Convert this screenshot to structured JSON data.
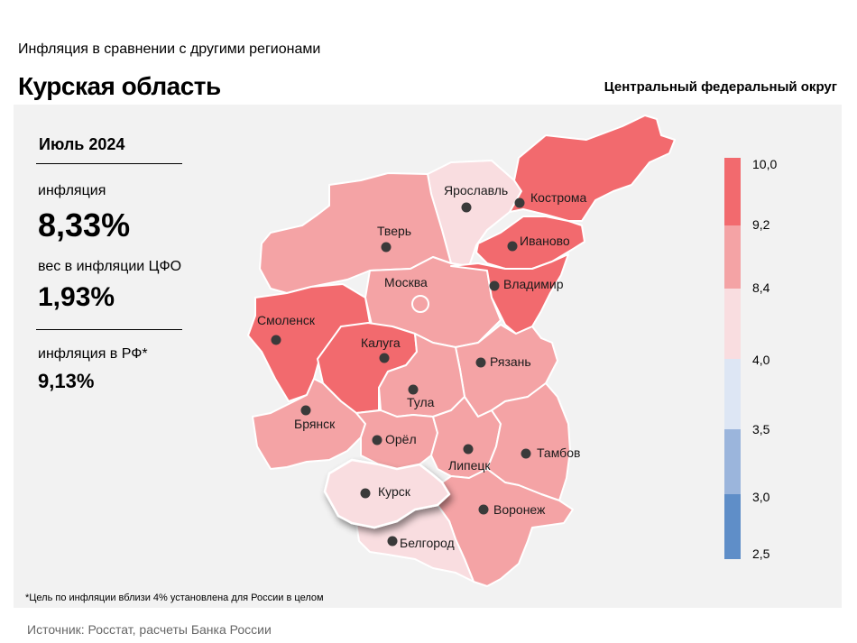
{
  "header": {
    "subtitle": "Инфляция  в сравнении  с другими  регионами",
    "title": "Курская область",
    "district": "Центральный федеральный округ"
  },
  "stats": {
    "period": "Июль 2024",
    "inflation_label": "инфляция",
    "inflation_value": "8,33%",
    "weight_label": "вес в инфляции  ЦФО",
    "weight_value": "1,93%",
    "rf_label": "инфляция  в РФ*",
    "rf_value": "9,13%"
  },
  "legend": {
    "ticks": [
      "10,0",
      "9,2",
      "8,4",
      "4,0",
      "3,5",
      "3,0",
      "2,5"
    ],
    "colors": [
      "#f26a6e",
      "#f4a3a5",
      "#f9dde0",
      "#dde6f4",
      "#9bb5dc",
      "#5f8ec8"
    ]
  },
  "regions": [
    {
      "name": "Ярославль",
      "color": "#f9dde0"
    },
    {
      "name": "Кострома",
      "color": "#f26a6e"
    },
    {
      "name": "Тверь",
      "color": "#f4a3a5"
    },
    {
      "name": "Иваново",
      "color": "#f26a6e"
    },
    {
      "name": "Москва",
      "color": "#f4a3a5"
    },
    {
      "name": "Владимир",
      "color": "#f26a6e"
    },
    {
      "name": "Смоленск",
      "color": "#f26a6e"
    },
    {
      "name": "Калуга",
      "color": "#f26a6e"
    },
    {
      "name": "Рязань",
      "color": "#f4a3a5"
    },
    {
      "name": "Тула",
      "color": "#f4a3a5"
    },
    {
      "name": "Брянск",
      "color": "#f4a3a5"
    },
    {
      "name": "Орёл",
      "color": "#f4a3a5"
    },
    {
      "name": "Липецк",
      "color": "#f4a3a5"
    },
    {
      "name": "Тамбов",
      "color": "#f4a3a5"
    },
    {
      "name": "Курск",
      "color": "#f9dde0"
    },
    {
      "name": "Воронеж",
      "color": "#f4a3a5"
    },
    {
      "name": "Белгород",
      "color": "#f9dde0"
    }
  ],
  "footnote": "*Цель по инфляции вблизи 4% установлена для России в целом",
  "source": "Источник: Росстат, расчеты Банка России"
}
